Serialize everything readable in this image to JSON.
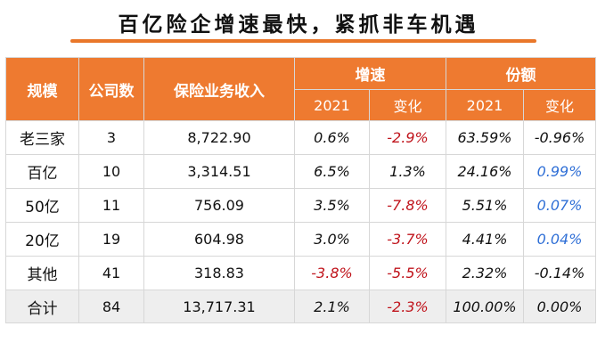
{
  "title": "百亿险企增速最快，紧抓非车机遇",
  "colors": {
    "accent": "#ee7a30",
    "negative": "#c0141c",
    "positive_change": "#2f6fd6"
  },
  "header": {
    "scale": "规模",
    "count": "公司数",
    "income": "保险业务收入",
    "growth": "增速",
    "share": "份额",
    "growth_year": "2021",
    "growth_change": "变化",
    "share_year": "2021",
    "share_change": "变化"
  },
  "rows": [
    {
      "scale": "老三家",
      "count": "3",
      "income": "8,722.90",
      "g2021": "0.6%",
      "gchg": "-2.9%",
      "s2021": "63.59%",
      "schg": "-0.96%"
    },
    {
      "scale": "百亿",
      "count": "10",
      "income": "3,314.51",
      "g2021": "6.5%",
      "gchg": "1.3%",
      "s2021": "24.16%",
      "schg": "0.99%"
    },
    {
      "scale": "50亿",
      "count": "11",
      "income": "756.09",
      "g2021": "3.5%",
      "gchg": "-7.8%",
      "s2021": "5.51%",
      "schg": "0.07%"
    },
    {
      "scale": "20亿",
      "count": "19",
      "income": "604.98",
      "g2021": "3.0%",
      "gchg": "-3.7%",
      "s2021": "4.41%",
      "schg": "0.04%"
    },
    {
      "scale": "其他",
      "count": "41",
      "income": "318.83",
      "g2021": "-3.8%",
      "gchg": "-5.5%",
      "s2021": "2.32%",
      "schg": "-0.14%"
    },
    {
      "scale": "合计",
      "count": "84",
      "income": "13,717.31",
      "g2021": "2.1%",
      "gchg": "-2.3%",
      "s2021": "100.00%",
      "schg": "0.00%"
    }
  ]
}
